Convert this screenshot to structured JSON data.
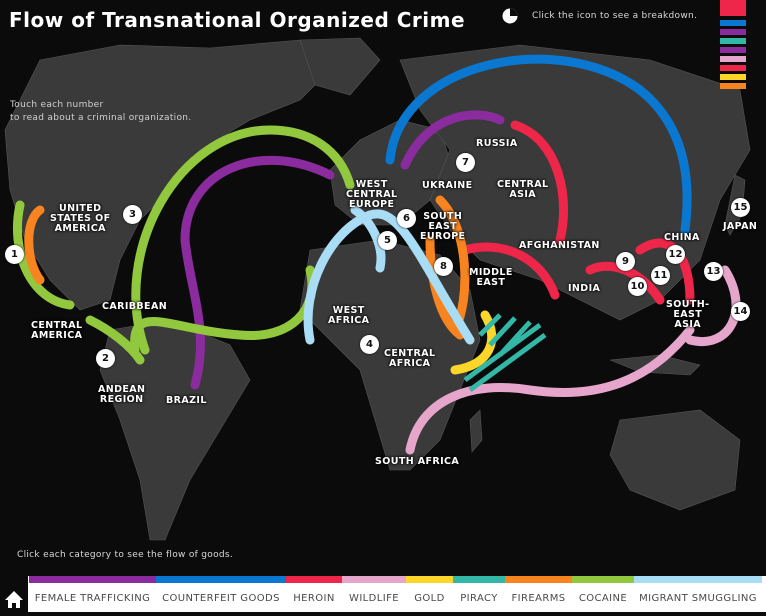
{
  "header": {
    "title": "Flow of Transnational Organized Crime",
    "breakdown_hint": "Click the icon to see a breakdown."
  },
  "instructions": {
    "touch_hint": "Touch each number\nto read about a criminal organization.",
    "category_hint": "Click each category to see the flow of goods."
  },
  "regions": [
    {
      "id": "united-states-of-america",
      "label": "UNITED\nSTATES OF\nAMERICA"
    },
    {
      "id": "caribbean",
      "label": "CARIBBEAN"
    },
    {
      "id": "central-america",
      "label": "CENTRAL\nAMERICA"
    },
    {
      "id": "andean-region",
      "label": "ANDEAN\nREGION"
    },
    {
      "id": "brazil",
      "label": "BRAZIL"
    },
    {
      "id": "west-central-europe",
      "label": "WEST\nCENTRAL\nEUROPE"
    },
    {
      "id": "ukraine",
      "label": "UKRAINE"
    },
    {
      "id": "south-east-europe",
      "label": "SOUTH\nEAST\nEUROPE"
    },
    {
      "id": "russia",
      "label": "RUSSIA"
    },
    {
      "id": "central-asia",
      "label": "CENTRAL\nASIA"
    },
    {
      "id": "afghanistan",
      "label": "AFGHANISTAN"
    },
    {
      "id": "middle-east",
      "label": "MIDDLE\nEAST"
    },
    {
      "id": "west-africa",
      "label": "WEST\nAFRICA"
    },
    {
      "id": "central-africa",
      "label": "CENTRAL\nAFRICA"
    },
    {
      "id": "south-africa",
      "label": "SOUTH AFRICA"
    },
    {
      "id": "india",
      "label": "INDIA"
    },
    {
      "id": "china",
      "label": "CHINA"
    },
    {
      "id": "japan",
      "label": "JAPAN"
    },
    {
      "id": "south-east-asia",
      "label": "SOUTH-\nEAST\nASIA"
    }
  ],
  "organizations": [
    "1",
    "2",
    "3",
    "4",
    "5",
    "6",
    "7",
    "8",
    "9",
    "10",
    "11",
    "12",
    "13",
    "14",
    "15"
  ],
  "categories": [
    {
      "label": "FEMALE TRAFFICKING",
      "color": "#8a2b9e"
    },
    {
      "label": "COUNTERFEIT GOODS",
      "color": "#0a78d0"
    },
    {
      "label": "HEROIN",
      "color": "#ee2649"
    },
    {
      "label": "WILDLIFE",
      "color": "#e6a6cc"
    },
    {
      "label": "GOLD",
      "color": "#fcd72a"
    },
    {
      "label": "PIRACY",
      "color": "#33b8a8"
    },
    {
      "label": "FIREARMS",
      "color": "#f7841f"
    },
    {
      "label": "COCAINE",
      "color": "#92c83e"
    },
    {
      "label": "MIGRANT SMUGGLING",
      "color": "#a9dcf5"
    }
  ]
}
